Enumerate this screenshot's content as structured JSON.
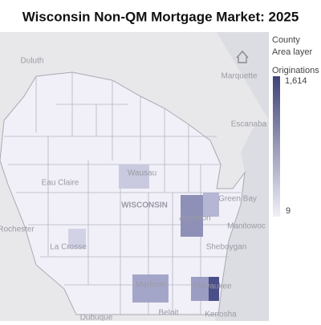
{
  "header": {
    "title": "Wisconsin Non-QM Mortgage Market: 2025"
  },
  "map": {
    "places": [
      "Duluth",
      "Marquette",
      "Escanaba",
      "Green Bay",
      "Eau Claire",
      "Wausau",
      "WISCONSIN",
      "Appleton",
      "Manitowoc",
      "Rochester",
      "La Crosse",
      "Sheboygan",
      "Madison",
      "Milwaukee",
      "Beloit",
      "Kenosha",
      "Dubuque"
    ]
  },
  "legend": {
    "layer": "County",
    "layer_type": "Area layer",
    "measure": "Originations",
    "max": {
      "value": 1614,
      "label": "1,614"
    },
    "min": 9
  }
}
